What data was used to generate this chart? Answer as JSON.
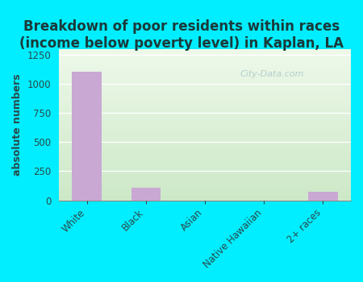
{
  "categories": [
    "White",
    "Black",
    "Asian",
    "Native Hawaiian",
    "2+ races"
  ],
  "values": [
    1100,
    110,
    0,
    0,
    75
  ],
  "bar_color": "#c9a8d4",
  "title_line1": "Breakdown of poor residents within races",
  "title_line2": "(income below poverty level) in Kaplan, LA",
  "ylabel": "absolute numbers",
  "ylim": [
    0,
    1300
  ],
  "yticks": [
    0,
    250,
    500,
    750,
    1000,
    1250
  ],
  "bg_figure": "#00eeff",
  "bg_plot_top": "#cce8c8",
  "bg_plot_bottom": "#eef8ea",
  "watermark": "City-Data.com",
  "title_fontsize": 12,
  "title_color": "#1a3a3a",
  "ylabel_fontsize": 9,
  "tick_fontsize": 8.5
}
